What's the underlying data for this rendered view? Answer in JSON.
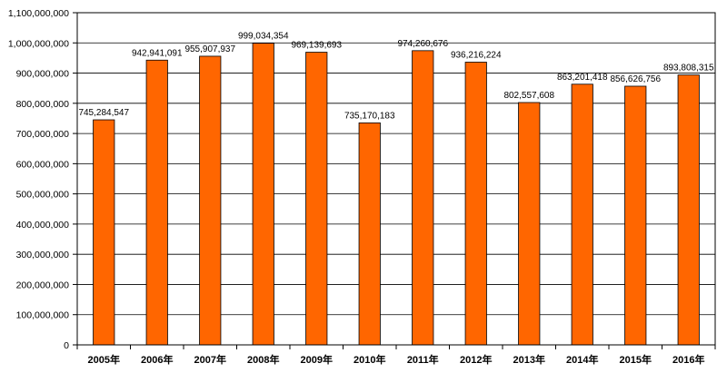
{
  "chart_data": {
    "type": "bar",
    "categories": [
      "2005年",
      "2006年",
      "2007年",
      "2008年",
      "2009年",
      "2010年",
      "2011年",
      "2012年",
      "2013年",
      "2014年",
      "2015年",
      "2016年"
    ],
    "values": [
      745284547,
      942941091,
      955907937,
      999034354,
      969139693,
      735170183,
      974260676,
      936216224,
      802557608,
      863201418,
      856626756,
      893808315
    ],
    "data_labels": [
      "745,284,547",
      "942,941,091",
      "955,907,937",
      "999,034,354",
      "969,139,693",
      "735,170,183",
      "974,260,676",
      "936,216,224",
      "802,557,608",
      "863,201,418",
      "856,626,756",
      "893,808,315"
    ],
    "y_ticks": [
      0,
      100000000,
      200000000,
      300000000,
      400000000,
      500000000,
      600000000,
      700000000,
      800000000,
      900000000,
      1000000000,
      1100000000
    ],
    "y_tick_labels": [
      "0",
      "100,000,000",
      "200,000,000",
      "300,000,000",
      "400,000,000",
      "500,000,000",
      "600,000,000",
      "700,000,000",
      "800,000,000",
      "900,000,000",
      "1,000,000,000",
      "1,100,000,000"
    ],
    "ylim": [
      0,
      1100000000
    ],
    "title": "",
    "xlabel": "",
    "ylabel": "",
    "grid": true,
    "bar_color": "#ff6600",
    "bar_edge_color": "#000000",
    "grid_color": "#000000"
  }
}
